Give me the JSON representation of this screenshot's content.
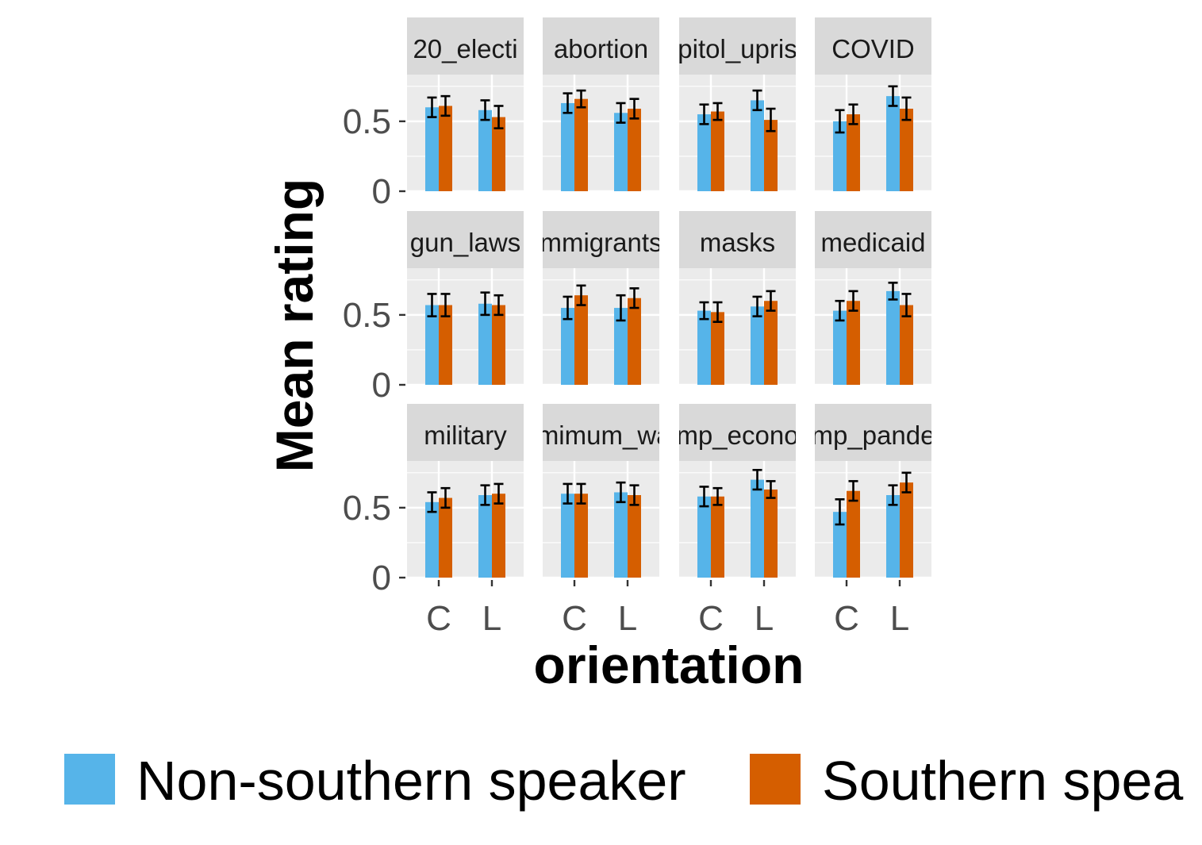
{
  "chart_data": {
    "type": "bar",
    "xlabel": "orientation",
    "ylabel": "Mean rating",
    "ylim": [
      0,
      0.8
    ],
    "y_ticks": [
      {
        "value": 0,
        "label": "0"
      },
      {
        "value": 0.5,
        "label": "0.5"
      }
    ],
    "categories": [
      "C",
      "L"
    ],
    "layout": {
      "columns": 4,
      "rows": 3
    },
    "series": [
      {
        "name": "Non-southern speaker",
        "color": "#56B4E9"
      },
      {
        "name": "Southern spea",
        "color": "#D55E00"
      }
    ],
    "facets": [
      {
        "label": "20_electi",
        "values": [
          [
            0.6,
            0.61
          ],
          [
            0.58,
            0.53
          ]
        ],
        "err": [
          [
            0.07,
            0.07
          ],
          [
            0.07,
            0.08
          ]
        ]
      },
      {
        "label": "abortion",
        "values": [
          [
            0.63,
            0.66
          ],
          [
            0.56,
            0.59
          ]
        ],
        "err": [
          [
            0.07,
            0.06
          ],
          [
            0.07,
            0.07
          ]
        ]
      },
      {
        "label": "pitol_upris",
        "values": [
          [
            0.55,
            0.57
          ],
          [
            0.65,
            0.51
          ]
        ],
        "err": [
          [
            0.07,
            0.06
          ],
          [
            0.07,
            0.08
          ]
        ]
      },
      {
        "label": "COVID",
        "values": [
          [
            0.5,
            0.55
          ],
          [
            0.68,
            0.59
          ]
        ],
        "err": [
          [
            0.08,
            0.07
          ],
          [
            0.07,
            0.08
          ]
        ]
      },
      {
        "label": "gun_laws",
        "values": [
          [
            0.57,
            0.57
          ],
          [
            0.58,
            0.57
          ]
        ],
        "err": [
          [
            0.08,
            0.08
          ],
          [
            0.08,
            0.07
          ]
        ]
      },
      {
        "label": "mmigrants",
        "values": [
          [
            0.55,
            0.64
          ],
          [
            0.55,
            0.62
          ]
        ],
        "err": [
          [
            0.08,
            0.07
          ],
          [
            0.09,
            0.07
          ]
        ]
      },
      {
        "label": "masks",
        "values": [
          [
            0.53,
            0.52
          ],
          [
            0.56,
            0.6
          ]
        ],
        "err": [
          [
            0.06,
            0.07
          ],
          [
            0.07,
            0.07
          ]
        ]
      },
      {
        "label": "medicaid",
        "values": [
          [
            0.53,
            0.6
          ],
          [
            0.67,
            0.57
          ]
        ],
        "err": [
          [
            0.07,
            0.07
          ],
          [
            0.06,
            0.08
          ]
        ]
      },
      {
        "label": "military",
        "values": [
          [
            0.54,
            0.57
          ],
          [
            0.59,
            0.6
          ]
        ],
        "err": [
          [
            0.07,
            0.07
          ],
          [
            0.07,
            0.07
          ]
        ]
      },
      {
        "label": "imimum_wa",
        "values": [
          [
            0.6,
            0.6
          ],
          [
            0.61,
            0.59
          ]
        ],
        "err": [
          [
            0.07,
            0.07
          ],
          [
            0.07,
            0.07
          ]
        ]
      },
      {
        "label": "mp_econo",
        "values": [
          [
            0.58,
            0.58
          ],
          [
            0.7,
            0.63
          ]
        ],
        "err": [
          [
            0.07,
            0.06
          ],
          [
            0.07,
            0.06
          ]
        ]
      },
      {
        "label": "mp_pande",
        "values": [
          [
            0.47,
            0.62
          ],
          [
            0.59,
            0.68
          ]
        ],
        "err": [
          [
            0.09,
            0.07
          ],
          [
            0.07,
            0.07
          ]
        ]
      }
    ],
    "grid": true,
    "legend": "bottom"
  }
}
